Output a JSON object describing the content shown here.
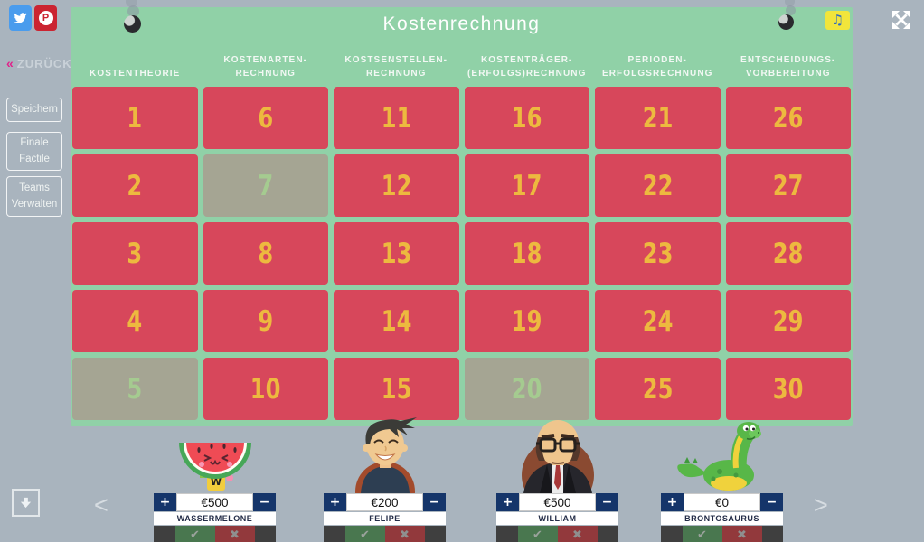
{
  "colors": {
    "page_bg": "#a9b4be",
    "board_green": "#90d1a7",
    "tile_red": "#d7475b",
    "tile_disabled": "#a5a593",
    "tile_number": "#edb93f",
    "tile_number_disabled": "#a5cb90",
    "navy": "#15356a",
    "check_green": "#49774f",
    "cross_red": "#92393c",
    "controls_bar": "#3f3f3f",
    "music_yellow": "#f1e53b",
    "twitter_blue": "#4a9ced",
    "pinterest_red": "#cb2431",
    "back_pink": "#e0218a"
  },
  "header": {
    "title": "Kostenrechnung"
  },
  "board": {
    "categories": [
      "KOSTENTHEORIE",
      "KOSTENARTEN-RECHNUNG",
      "KOSTSENSTELLEN-\nRECHNUNG",
      "KOSTENTRÄGER-\n(ERFOLGS)RECHNUNG",
      "PERIODEN-\nERFOLGSRECHNUNG",
      "ENTSCHEIDUNGS-\nVORBEREITUNG"
    ],
    "columns": [
      [
        1,
        2,
        3,
        4,
        5
      ],
      [
        6,
        7,
        8,
        9,
        10
      ],
      [
        11,
        12,
        13,
        14,
        15
      ],
      [
        16,
        17,
        18,
        19,
        20
      ],
      [
        21,
        22,
        23,
        24,
        25
      ],
      [
        26,
        27,
        28,
        29,
        30
      ]
    ],
    "disabled_tiles": [
      5,
      7,
      20
    ]
  },
  "sidebar": {
    "back": {
      "chevrons": "«",
      "label": "ZURÜCK"
    },
    "buttons": [
      "Speichern",
      "Finale\nFactile",
      "Teams\nVerwalten"
    ]
  },
  "players": [
    {
      "name": "WASSERMELONE",
      "score": "€500",
      "avatar": "watermelon-avatar"
    },
    {
      "name": "FELIPE",
      "score": "€200",
      "avatar": "man-dark-hair-avatar"
    },
    {
      "name": "WILLIAM",
      "score": "€500",
      "avatar": "bald-man-glasses-avatar"
    },
    {
      "name": "BRONTOSAURUS",
      "score": "€0",
      "avatar": "dinosaur-avatar"
    }
  ],
  "controls": {
    "plus": "+",
    "minus": "−",
    "correct": "✔",
    "incorrect": "✖"
  },
  "pagination": {
    "prev": "<",
    "next": ">"
  },
  "icons": {
    "music": "♫",
    "pinterest_letter": "P"
  }
}
